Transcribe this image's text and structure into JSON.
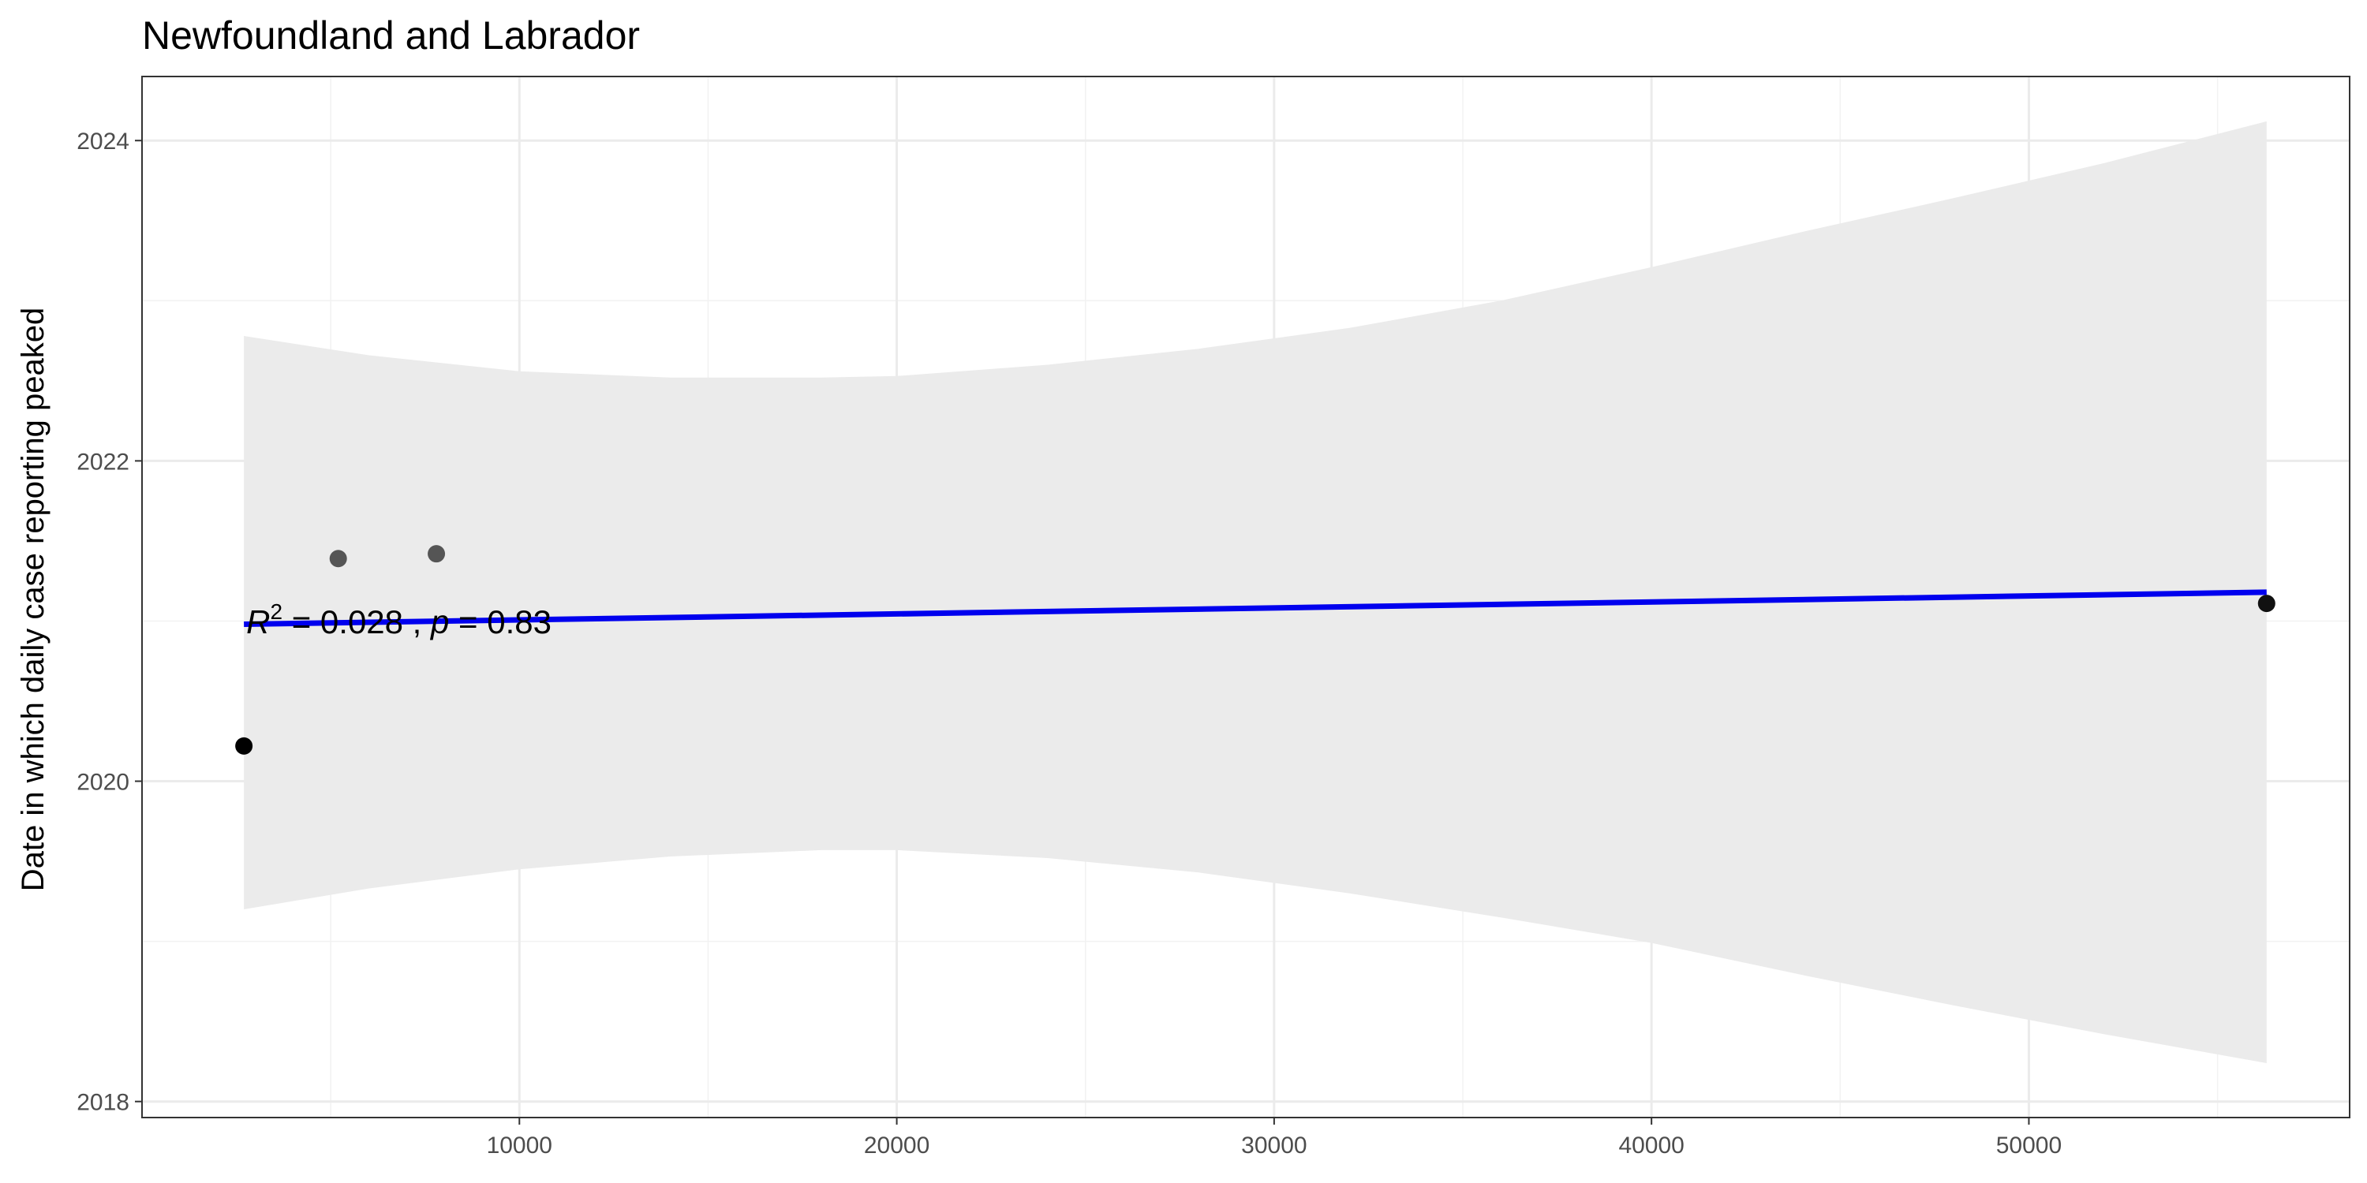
{
  "chart_data": {
    "type": "scatter",
    "title": "Newfoundland and Labrador",
    "xlabel": "",
    "ylabel": "Date in which daily case reporting peaked",
    "xlim": [
      0,
      58500
    ],
    "ylim": [
      2017.9,
      2024.4
    ],
    "x_ticks": [
      10000,
      20000,
      30000,
      40000,
      50000
    ],
    "x_tick_labels": [
      "10000",
      "20000",
      "30000",
      "40000",
      "50000"
    ],
    "x_minor_ticks": [
      5000,
      15000,
      25000,
      35000,
      45000,
      55000
    ],
    "y_ticks": [
      2018,
      2020,
      2022,
      2024
    ],
    "y_tick_labels": [
      "2018",
      "2020",
      "2022",
      "2024"
    ],
    "y_minor_ticks": [
      2019,
      2021,
      2023
    ],
    "grid": true,
    "points": [
      {
        "x": 2700,
        "y": 2020.22,
        "color": "#000000"
      },
      {
        "x": 5200,
        "y": 2021.39,
        "color": "#555555"
      },
      {
        "x": 7800,
        "y": 2021.42,
        "color": "#555555"
      },
      {
        "x": 56300,
        "y": 2021.11,
        "color": "#111111"
      }
    ],
    "fit": {
      "x": [
        2700,
        56300
      ],
      "y": [
        2020.98,
        2021.18
      ],
      "color": "#0000ee"
    },
    "confidence_band": {
      "x": [
        2700,
        6000,
        10000,
        14000,
        18000,
        20000,
        24000,
        28000,
        32000,
        36000,
        40000,
        44000,
        48000,
        52000,
        56300
      ],
      "upper": [
        2022.78,
        2022.66,
        2022.56,
        2022.52,
        2022.52,
        2022.53,
        2022.6,
        2022.7,
        2022.83,
        2023.0,
        2023.21,
        2023.43,
        2023.64,
        2023.86,
        2024.12
      ],
      "lower": [
        2019.2,
        2019.33,
        2019.45,
        2019.53,
        2019.57,
        2019.57,
        2019.52,
        2019.43,
        2019.3,
        2019.15,
        2018.99,
        2018.79,
        2018.6,
        2018.42,
        2018.24
      ],
      "color": "#ebebeb"
    },
    "annotation": {
      "r_symbol": "R",
      "r_exponent": "2",
      "r_value": " = 0.028 , ",
      "p_symbol": "p",
      "p_value": " = 0.83",
      "x": 2700,
      "y": 2021.12
    }
  }
}
